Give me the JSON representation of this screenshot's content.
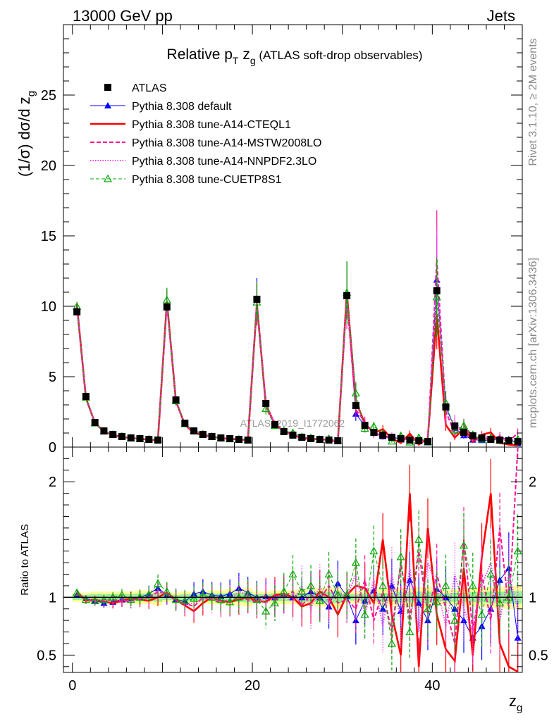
{
  "header": {
    "left": "13000 GeV pp",
    "right": "Jets"
  },
  "side_labels": {
    "rivet": "Rivet 3.1.10, ≥ 2M events",
    "mcplots": "mcplots.cern.ch [arXiv:1306.3436]"
  },
  "chart_data": {
    "type": "line",
    "title": "Relative pT zg (ATLAS soft-drop observables)",
    "title_parts": {
      "pre": "Relative p",
      "sub1": "T",
      "mid": " z",
      "sub2": "g",
      "post": " (ATLAS soft-drop observables)"
    },
    "xlabel": "z",
    "xlabel_sub": "g",
    "ylabel": "(1/σ) dσ/d z",
    "ylabel_sub": "g",
    "ratio_ylabel": "Ratio to ATLAS",
    "watermark": "ATLAS_2019_I1772062",
    "xlim": [
      -1,
      50
    ],
    "ylim": [
      0,
      30
    ],
    "ratio_ylim": [
      0.35,
      2.3
    ],
    "x_ticks": [
      "0",
      "20",
      "40"
    ],
    "y_ticks": [
      "0",
      "5",
      "10",
      "15",
      "20",
      "25"
    ],
    "ratio_ticks": [
      "0.5",
      "1",
      "2"
    ],
    "legend_position": "top-left",
    "x": [
      0.5,
      1.5,
      2.5,
      3.5,
      4.5,
      5.5,
      6.5,
      7.5,
      8.5,
      9.5,
      10.5,
      11.5,
      12.5,
      13.5,
      14.5,
      15.5,
      16.5,
      17.5,
      18.5,
      19.5,
      20.5,
      21.5,
      22.5,
      23.5,
      24.5,
      25.5,
      26.5,
      27.5,
      28.5,
      29.5,
      30.5,
      31.5,
      32.5,
      33.5,
      34.5,
      35.5,
      36.5,
      37.5,
      38.5,
      39.5,
      40.5,
      41.5,
      42.5,
      43.5,
      44.5,
      45.5,
      46.5,
      47.5,
      48.5,
      49.5
    ],
    "data": {
      "name": "ATLAS",
      "values": [
        9.6,
        3.6,
        1.75,
        1.15,
        0.9,
        0.75,
        0.65,
        0.6,
        0.55,
        0.5,
        9.95,
        3.35,
        1.7,
        1.15,
        0.9,
        0.75,
        0.65,
        0.6,
        0.55,
        0.5,
        10.5,
        3.1,
        1.6,
        1.1,
        0.85,
        0.7,
        0.6,
        0.55,
        0.5,
        0.45,
        10.75,
        2.95,
        1.55,
        1.05,
        0.85,
        0.7,
        0.6,
        0.5,
        0.45,
        0.4,
        11.1,
        2.85,
        1.5,
        1.05,
        0.8,
        0.65,
        0.55,
        0.5,
        0.45,
        0.4
      ],
      "band_low": [
        0.96,
        0.96,
        0.95,
        0.95,
        0.95,
        0.95,
        0.95,
        0.94,
        0.94,
        0.93,
        0.96,
        0.96,
        0.95,
        0.95,
        0.95,
        0.94,
        0.94,
        0.93,
        0.93,
        0.92,
        0.95,
        0.95,
        0.94,
        0.94,
        0.94,
        0.93,
        0.93,
        0.92,
        0.92,
        0.91,
        0.95,
        0.95,
        0.94,
        0.94,
        0.93,
        0.93,
        0.92,
        0.92,
        0.91,
        0.91,
        0.94,
        0.94,
        0.93,
        0.93,
        0.92,
        0.92,
        0.91,
        0.91,
        0.9,
        0.9
      ],
      "band_high": [
        1.04,
        1.04,
        1.05,
        1.05,
        1.05,
        1.05,
        1.05,
        1.06,
        1.06,
        1.07,
        1.04,
        1.04,
        1.05,
        1.05,
        1.05,
        1.06,
        1.06,
        1.07,
        1.07,
        1.08,
        1.05,
        1.05,
        1.06,
        1.06,
        1.06,
        1.07,
        1.07,
        1.08,
        1.08,
        1.09,
        1.05,
        1.05,
        1.06,
        1.06,
        1.07,
        1.07,
        1.08,
        1.08,
        1.09,
        1.09,
        1.06,
        1.06,
        1.07,
        1.07,
        1.08,
        1.08,
        1.09,
        1.09,
        1.1,
        1.1
      ]
    },
    "series": [
      {
        "name": "Pythia 8.308 default",
        "color": "#0000ff",
        "dash": "",
        "width": 1,
        "marker": "triangle-filled",
        "ratio": [
          1.02,
          0.99,
          0.97,
          0.95,
          0.96,
          0.98,
          0.99,
          1.0,
          1.03,
          1.08,
          1.02,
          0.98,
          0.96,
          1.03,
          1.05,
          1.02,
          1.01,
          1.03,
          1.08,
          1.04,
          1.0,
          1.01,
          1.0,
          1.02,
          1.0,
          1.0,
          1.05,
          1.0,
          0.92,
          1.12,
          1.01,
          0.8,
          0.97,
          1.06,
          0.9,
          1.1,
          0.88,
          1.15,
          0.95,
          0.8,
          1.07,
          1.0,
          0.9,
          0.8,
          0.65,
          0.75,
          0.9,
          1.15,
          1.25,
          0.65
        ]
      },
      {
        "name": "Pythia 8.308 tune-A14-CTEQL1",
        "color": "#ff0000",
        "dash": "",
        "width": 2.6,
        "marker": "none",
        "ratio": [
          1.05,
          0.97,
          0.98,
          0.96,
          0.95,
          0.97,
          0.99,
          0.98,
          0.97,
          1.0,
          1.04,
          0.98,
          0.93,
          0.88,
          0.95,
          1.0,
          0.97,
          0.96,
          0.98,
          1.0,
          0.97,
          0.96,
          1.02,
          1.03,
          1.0,
          0.92,
          0.95,
          1.05,
          1.0,
          0.85,
          1.02,
          1.1,
          1.08,
          0.95,
          1.5,
          0.85,
          0.5,
          1.9,
          0.4,
          1.6,
          0.85,
          0.55,
          0.45,
          1.25,
          0.5,
          1.35,
          1.9,
          0.6,
          0.4,
          0.3
        ]
      },
      {
        "name": "Pythia 8.308 tune-A14-MSTW2008LO",
        "color": "#ff1493",
        "dash": "6,3",
        "width": 2,
        "marker": "none",
        "ratio": [
          1.03,
          0.98,
          0.96,
          0.97,
          0.98,
          0.96,
          0.97,
          1.0,
          0.99,
          1.05,
          1.03,
          0.97,
          0.95,
          0.92,
          1.0,
          0.98,
          0.95,
          0.97,
          1.0,
          0.98,
          0.96,
          1.02,
          0.98,
          1.01,
          1.05,
          0.93,
          1.02,
          0.98,
          1.1,
          0.95,
          0.98,
          0.9,
          1.15,
          0.8,
          1.05,
          0.7,
          1.3,
          0.8,
          1.4,
          0.85,
          1.2,
          0.9,
          0.6,
          1.5,
          0.7,
          1.2,
          0.8,
          1.6,
          0.9,
          2.5
        ]
      },
      {
        "name": "Pythia 8.308 tune-A14-NNPDF2.3LO",
        "color": "#ee44ee",
        "dash": "1.5,2",
        "width": 2,
        "marker": "none",
        "ratio": [
          1.04,
          0.99,
          0.97,
          0.98,
          0.97,
          0.98,
          0.96,
          0.99,
          1.0,
          1.06,
          1.02,
          0.99,
          0.94,
          0.95,
          0.98,
          1.0,
          0.96,
          0.98,
          1.05,
          1.02,
          0.98,
          0.95,
          1.0,
          1.02,
          0.96,
          1.1,
          0.9,
          1.1,
          0.95,
          1.05,
          1.0,
          1.2,
          0.85,
          1.15,
          0.75,
          1.2,
          0.8,
          1.25,
          0.7,
          1.3,
          1.1,
          0.75,
          1.2,
          0.9,
          0.7,
          1.1,
          1.3,
          0.8,
          1.2,
          0.9
        ]
      },
      {
        "name": "Pythia 8.308 tune-CUETP8S1",
        "color": "#00aa00",
        "dash": "5,3",
        "width": 1,
        "marker": "triangle-open",
        "ratio": [
          1.04,
          0.98,
          0.97,
          0.98,
          1.0,
          1.02,
          0.98,
          1.0,
          1.02,
          1.12,
          1.05,
          0.98,
          0.97,
          0.99,
          1.02,
          1.0,
          0.98,
          0.96,
          1.0,
          1.02,
          0.98,
          0.88,
          0.95,
          1.05,
          1.2,
          1.05,
          1.1,
          0.97,
          1.2,
          1.02,
          1.02,
          1.3,
          0.85,
          1.4,
          1.1,
          0.6,
          1.35,
          0.7,
          1.5,
          0.9,
          0.96,
          1.1,
          0.8,
          1.45,
          1.1,
          0.85,
          1.2,
          0.95,
          1.0,
          1.4
        ]
      }
    ]
  }
}
